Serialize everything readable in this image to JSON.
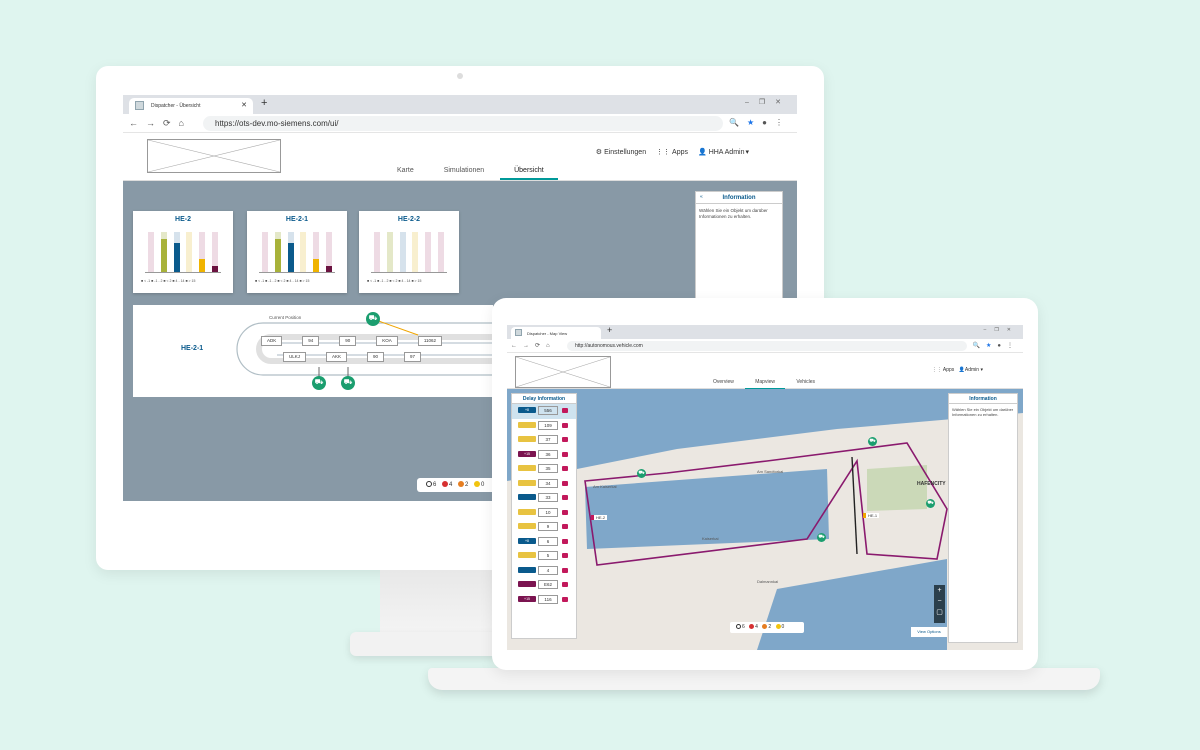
{
  "desktop": {
    "tab_title": "Dispatcher - Übersicht",
    "url": "https://ots-dev.mo-siemens.com/ui/",
    "header": {
      "settings": "Einstellungen",
      "apps": "Apps",
      "user": "HHA Admin"
    },
    "nav_tabs": [
      "Karte",
      "Simulationen",
      "Übersicht"
    ],
    "cards": [
      {
        "title": "HE-2",
        "bars": [
          0,
          0.82,
          0.72,
          0,
          0.32,
          0.16
        ],
        "bar_labels": [
          "",
          "",
          "",
          "",
          "",
          ""
        ]
      },
      {
        "title": "HE-2-1",
        "bars": [
          0,
          0.82,
          0.72,
          0,
          0.32,
          0.16
        ],
        "bar_labels": [
          "",
          "",
          "",
          "",
          "",
          ""
        ]
      },
      {
        "title": "HE-2-2",
        "bars": [
          0,
          0,
          0,
          0,
          0,
          0
        ],
        "bar_labels": [
          "",
          "",
          "",
          "",
          "",
          ""
        ]
      }
    ],
    "card_legend": "■ < -1  ■ -1 - 2  ■ < 2  ■ 4 - 14  ■ > 15",
    "info": {
      "title": "Information",
      "text": "Wählen Sie ein Objekt um darüber Informationen zu erhalten."
    },
    "route": {
      "label": "HE-2-1",
      "current_position": "Current Position",
      "top_stops": [
        "ADK",
        "94",
        "90",
        "KOA",
        "11062"
      ],
      "bottom_stops": [
        "ULKJ",
        "AKK",
        "90",
        "97"
      ]
    },
    "status": {
      "counts": [
        "6",
        "4",
        "2",
        "0"
      ],
      "colors": [
        "#333333",
        "#d63031",
        "#e67e22",
        "#f1c40f"
      ]
    }
  },
  "laptop": {
    "tab_title": "Dispatcher - Map View",
    "url": "http://autonomous.vehicle.com",
    "nav_tabs": [
      "Overview",
      "Mapview",
      "Vehicles"
    ],
    "header": {
      "apps": "Apps",
      "user": "Admin"
    },
    "delay_panel": {
      "title": "Delay Information",
      "rows": [
        {
          "tag": "+8",
          "value": "556",
          "color": "#0a5a8c"
        },
        {
          "tag": "",
          "value": "109",
          "color": "#e8c341"
        },
        {
          "tag": "",
          "value": "37",
          "color": "#e8c341"
        },
        {
          "tag": "+15",
          "value": "36",
          "color": "#7b1450"
        },
        {
          "tag": "",
          "value": "35",
          "color": "#e8c341"
        },
        {
          "tag": "",
          "value": "34",
          "color": "#e8c341"
        },
        {
          "tag": "",
          "value": "33",
          "color": "#0a5a8c"
        },
        {
          "tag": "",
          "value": "10",
          "color": "#e8c341"
        },
        {
          "tag": "",
          "value": "9",
          "color": "#e8c341"
        },
        {
          "tag": "+8",
          "value": "6",
          "color": "#0a5a8c"
        },
        {
          "tag": "",
          "value": "5",
          "color": "#e8c341"
        },
        {
          "tag": "",
          "value": "4",
          "color": "#0a5a8c"
        },
        {
          "tag": "",
          "value": "E62",
          "color": "#7b1450"
        },
        {
          "tag": "+15",
          "value": "116",
          "color": "#7b1450"
        }
      ]
    },
    "info": {
      "title": "Information",
      "text": "Wählen Sie ein Objekt um darüber Informationen zu erhalten."
    },
    "map_labels": [
      "Am Sandtorkai",
      "Am Kaiserkai",
      "Kaiserkai",
      "Dalmannkai",
      "HAFENCITY",
      "HE-2",
      "HE-1"
    ],
    "status": {
      "counts": [
        "6",
        "4",
        "2",
        "0"
      ]
    },
    "view_options": "View Options"
  }
}
